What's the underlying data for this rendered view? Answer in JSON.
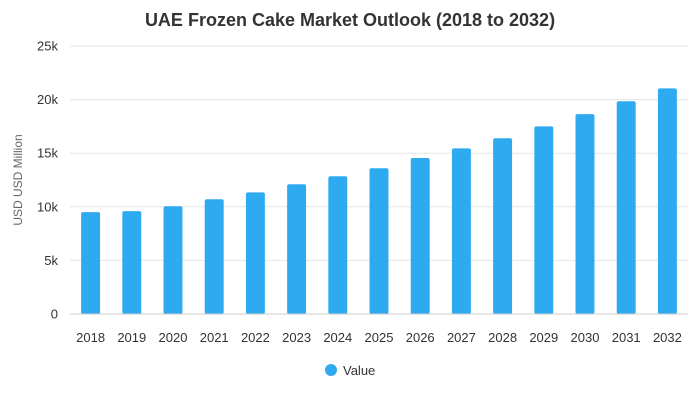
{
  "chart_data": {
    "type": "bar",
    "title": "UAE Frozen Cake Market Outlook (2018 to 2032)",
    "ylabel": "USD USD Million",
    "xlabel": "",
    "categories": [
      "2018",
      "2019",
      "2020",
      "2021",
      "2022",
      "2023",
      "2024",
      "2025",
      "2026",
      "2027",
      "2028",
      "2029",
      "2030",
      "2031",
      "2032"
    ],
    "series": [
      {
        "name": "Value",
        "color": "#2eaaf0",
        "values": [
          9500,
          9600,
          10050,
          10700,
          11350,
          12100,
          12850,
          13600,
          14550,
          15450,
          16400,
          17500,
          18650,
          19850,
          21050
        ]
      }
    ],
    "ylim": [
      0,
      25000
    ],
    "yticks": [
      0,
      5000,
      10000,
      15000,
      20000,
      25000
    ],
    "ytick_labels": [
      "0",
      "5k",
      "10k",
      "15k",
      "20k",
      "25k"
    ],
    "grid": true,
    "legend_position": "bottom-center"
  }
}
